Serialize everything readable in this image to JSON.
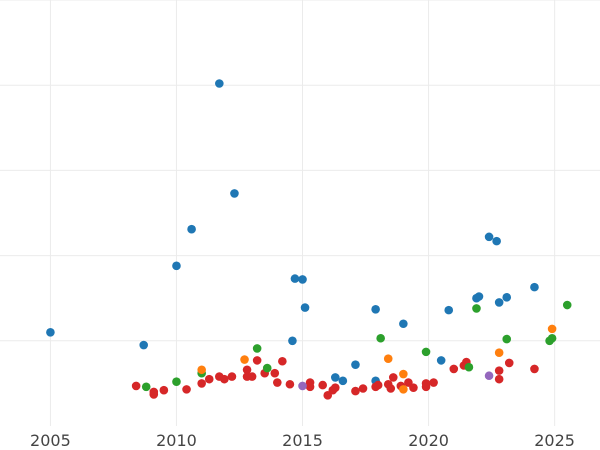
{
  "chart_data": {
    "type": "scatter",
    "x_ticks": [
      2005,
      2010,
      2015,
      2020,
      2025
    ],
    "xlim": [
      2003.0,
      2026.8
    ],
    "ylim": [
      0,
      5
    ],
    "y_grid": [
      1,
      2,
      3,
      4,
      5
    ],
    "x_grid": [
      2005,
      2010,
      2015,
      2020,
      2025
    ],
    "grid": true,
    "legend": "none",
    "series": [
      {
        "color": "#1f77b4",
        "points": [
          [
            2005.0,
            1.1
          ],
          [
            2008.7,
            0.95
          ],
          [
            2010.0,
            1.88
          ],
          [
            2010.6,
            2.31
          ],
          [
            2011.7,
            4.02
          ],
          [
            2012.3,
            2.73
          ],
          [
            2014.6,
            1.0
          ],
          [
            2014.7,
            1.73
          ],
          [
            2015.0,
            1.72
          ],
          [
            2015.1,
            1.39
          ],
          [
            2016.3,
            0.57
          ],
          [
            2016.6,
            0.53
          ],
          [
            2017.1,
            0.72
          ],
          [
            2017.9,
            0.53
          ],
          [
            2017.9,
            1.37
          ],
          [
            2019.0,
            1.2
          ],
          [
            2020.5,
            0.77
          ],
          [
            2020.8,
            1.36
          ],
          [
            2021.9,
            1.5
          ],
          [
            2022.0,
            1.52
          ],
          [
            2022.4,
            2.22
          ],
          [
            2022.7,
            2.17
          ],
          [
            2022.8,
            1.45
          ],
          [
            2023.1,
            1.51
          ],
          [
            2024.2,
            1.63
          ]
        ]
      },
      {
        "color": "#d62728",
        "points": [
          [
            2008.4,
            0.47
          ],
          [
            2009.1,
            0.4
          ],
          [
            2009.1,
            0.37
          ],
          [
            2009.5,
            0.42
          ],
          [
            2010.4,
            0.43
          ],
          [
            2011.0,
            0.5
          ],
          [
            2011.3,
            0.55
          ],
          [
            2011.7,
            0.58
          ],
          [
            2011.9,
            0.55
          ],
          [
            2012.2,
            0.58
          ],
          [
            2012.8,
            0.58
          ],
          [
            2012.8,
            0.66
          ],
          [
            2013.0,
            0.58
          ],
          [
            2013.2,
            0.77
          ],
          [
            2013.5,
            0.62
          ],
          [
            2013.9,
            0.62
          ],
          [
            2014.0,
            0.51
          ],
          [
            2014.2,
            0.76
          ],
          [
            2014.5,
            0.49
          ],
          [
            2015.3,
            0.51
          ],
          [
            2015.3,
            0.46
          ],
          [
            2015.8,
            0.48
          ],
          [
            2016.0,
            0.36
          ],
          [
            2016.2,
            0.42
          ],
          [
            2016.3,
            0.45
          ],
          [
            2017.1,
            0.41
          ],
          [
            2017.4,
            0.44
          ],
          [
            2017.9,
            0.46
          ],
          [
            2018.0,
            0.48
          ],
          [
            2018.4,
            0.49
          ],
          [
            2018.5,
            0.44
          ],
          [
            2018.6,
            0.57
          ],
          [
            2018.9,
            0.47
          ],
          [
            2019.2,
            0.51
          ],
          [
            2019.4,
            0.45
          ],
          [
            2019.9,
            0.46
          ],
          [
            2019.9,
            0.5
          ],
          [
            2020.2,
            0.51
          ],
          [
            2021.0,
            0.67
          ],
          [
            2021.4,
            0.71
          ],
          [
            2021.5,
            0.75
          ],
          [
            2022.8,
            0.55
          ],
          [
            2022.8,
            0.65
          ],
          [
            2023.2,
            0.74
          ],
          [
            2024.2,
            0.67
          ]
        ]
      },
      {
        "color": "#2ca02c",
        "points": [
          [
            2008.8,
            0.46
          ],
          [
            2010.0,
            0.52
          ],
          [
            2011.0,
            0.62
          ],
          [
            2013.2,
            0.91
          ],
          [
            2013.6,
            0.68
          ],
          [
            2018.1,
            1.03
          ],
          [
            2019.9,
            0.87
          ],
          [
            2021.6,
            0.69
          ],
          [
            2021.9,
            1.38
          ],
          [
            2023.1,
            1.02
          ],
          [
            2024.8,
            1.0
          ],
          [
            2024.9,
            1.03
          ],
          [
            2025.5,
            1.42
          ]
        ]
      },
      {
        "color": "#ff7f0e",
        "points": [
          [
            2011.0,
            0.66
          ],
          [
            2012.7,
            0.78
          ],
          [
            2018.4,
            0.79
          ],
          [
            2019.0,
            0.61
          ],
          [
            2019.0,
            0.43
          ],
          [
            2022.8,
            0.86
          ],
          [
            2024.9,
            1.14
          ]
        ]
      },
      {
        "color": "#9467bd",
        "points": [
          [
            2015.0,
            0.47
          ],
          [
            2022.4,
            0.59
          ]
        ]
      }
    ]
  }
}
